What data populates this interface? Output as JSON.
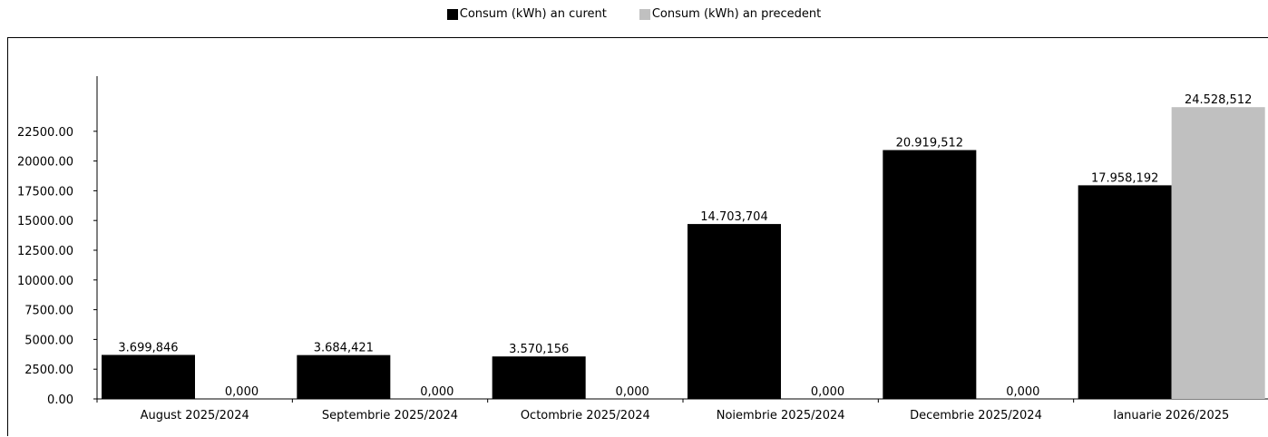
{
  "legend": {
    "current": "Consum (kWh) an curent",
    "previous": "Consum (kWh) an precedent"
  },
  "colors": {
    "current": "#000000",
    "previous": "#c0c0c0"
  },
  "chart_data": {
    "type": "bar",
    "categories": [
      "August 2025/2024",
      "Septembrie 2025/2024",
      "Octombrie 2025/2024",
      "Noiembrie 2025/2024",
      "Decembrie 2025/2024",
      "Ianuarie 2026/2025"
    ],
    "series": [
      {
        "name": "Consum (kWh) an curent",
        "values": [
          3699.846,
          3684.421,
          3570.156,
          14703.704,
          20919.512,
          17958.192
        ],
        "labels": [
          "3.699,846",
          "3.684,421",
          "3.570,156",
          "14.703,704",
          "20.919,512",
          "17.958,192"
        ]
      },
      {
        "name": "Consum (kWh) an precedent",
        "values": [
          0,
          0,
          0,
          0,
          0,
          24528.512
        ],
        "labels": [
          "0,000",
          "0,000",
          "0,000",
          "0,000",
          "0,000",
          "24.528,512"
        ]
      }
    ],
    "yticks": [
      "0.00",
      "2500.00",
      "5000.00",
      "7500.00",
      "10000.00",
      "12500.00",
      "15000.00",
      "17500.00",
      "20000.00",
      "22500.00"
    ],
    "ylim": [
      0,
      25000
    ],
    "legend_position": "top",
    "grid": false
  }
}
